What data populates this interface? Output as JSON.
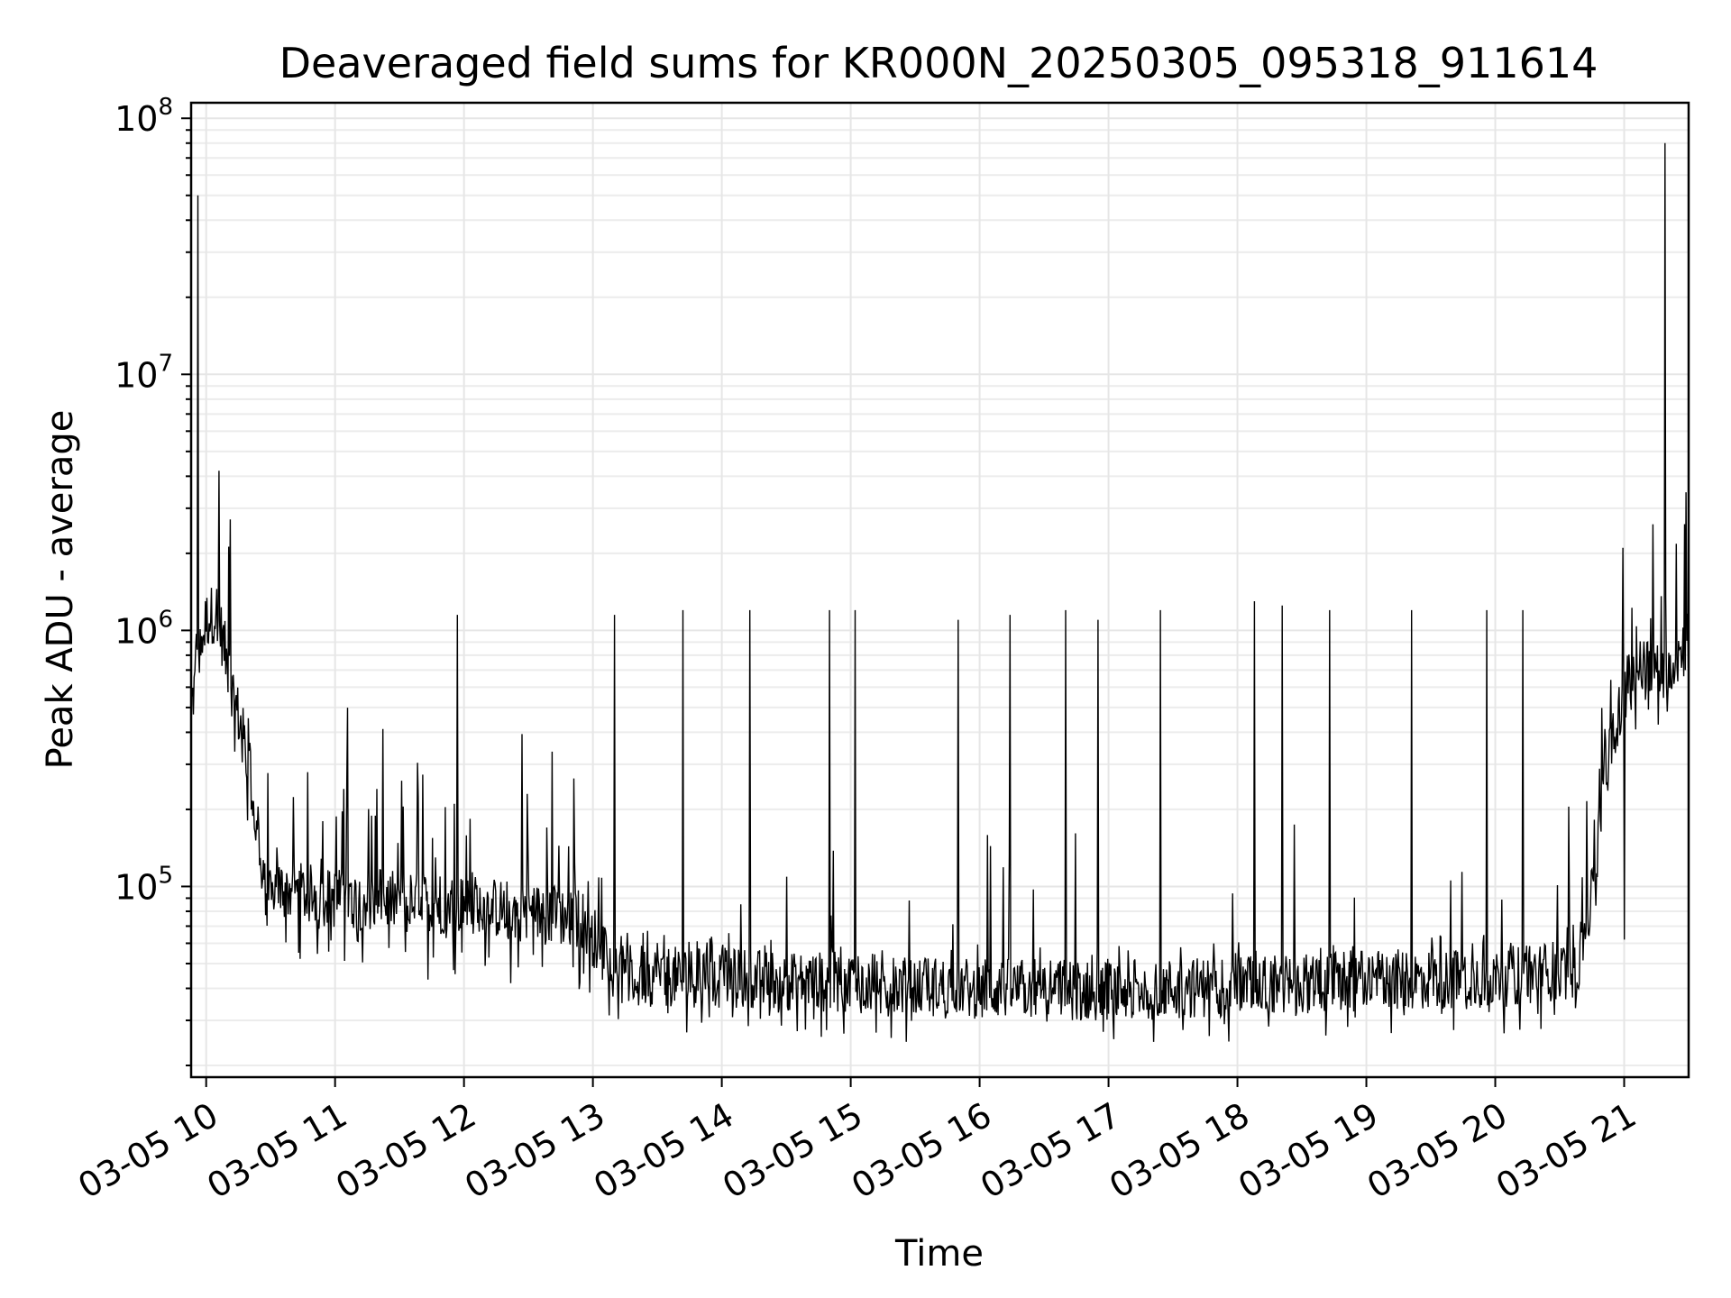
{
  "chart_data": {
    "type": "line",
    "title": "Deaveraged field sums for KR000N_20250305_095318_911614",
    "xlabel": "Time",
    "ylabel": "Peak ADU - average",
    "yscale": "log",
    "ylim": [
      18000,
      115000000
    ],
    "xlim": [
      "2025-03-05 09:53",
      "2025-03-05 21:30"
    ],
    "grid": true,
    "legend": "none",
    "line_color": "#000000",
    "x_ticks": [
      {
        "t": "2025-03-05 10:00",
        "label": "03-05 10"
      },
      {
        "t": "2025-03-05 11:00",
        "label": "03-05 11"
      },
      {
        "t": "2025-03-05 12:00",
        "label": "03-05 12"
      },
      {
        "t": "2025-03-05 13:00",
        "label": "03-05 13"
      },
      {
        "t": "2025-03-05 14:00",
        "label": "03-05 14"
      },
      {
        "t": "2025-03-05 15:00",
        "label": "03-05 15"
      },
      {
        "t": "2025-03-05 16:00",
        "label": "03-05 16"
      },
      {
        "t": "2025-03-05 17:00",
        "label": "03-05 17"
      },
      {
        "t": "2025-03-05 18:00",
        "label": "03-05 18"
      },
      {
        "t": "2025-03-05 19:00",
        "label": "03-05 19"
      },
      {
        "t": "2025-03-05 20:00",
        "label": "03-05 20"
      },
      {
        "t": "2025-03-05 21:00",
        "label": "03-05 21"
      }
    ],
    "y_ticks": [
      {
        "value": 100000,
        "base": "10",
        "exp": "5"
      },
      {
        "value": 1000000,
        "base": "10",
        "exp": "6"
      },
      {
        "value": 10000000,
        "base": "10",
        "exp": "7"
      },
      {
        "value": 100000000,
        "base": "10",
        "exp": "8"
      }
    ],
    "baseline": [
      {
        "t": "2025-03-05 09:53",
        "value": 500000
      },
      {
        "t": "2025-03-05 10:00",
        "value": 1100000
      },
      {
        "t": "2025-03-05 10:05",
        "value": 1200000
      },
      {
        "t": "2025-03-05 10:12",
        "value": 600000
      },
      {
        "t": "2025-03-05 10:20",
        "value": 300000
      },
      {
        "t": "2025-03-05 10:26",
        "value": 100000
      },
      {
        "t": "2025-03-05 11:00",
        "value": 90000
      },
      {
        "t": "2025-03-05 12:00",
        "value": 85000
      },
      {
        "t": "2025-03-05 12:55",
        "value": 75000
      },
      {
        "t": "2025-03-05 13:05",
        "value": 55000
      },
      {
        "t": "2025-03-05 13:12",
        "value": 45000
      },
      {
        "t": "2025-03-05 14:00",
        "value": 44000
      },
      {
        "t": "2025-03-05 15:00",
        "value": 42000
      },
      {
        "t": "2025-03-05 16:00",
        "value": 40000
      },
      {
        "t": "2025-03-05 17:00",
        "value": 39000
      },
      {
        "t": "2025-03-05 18:00",
        "value": 41000
      },
      {
        "t": "2025-03-05 19:00",
        "value": 43000
      },
      {
        "t": "2025-03-05 20:00",
        "value": 44000
      },
      {
        "t": "2025-03-05 20:38",
        "value": 48000
      },
      {
        "t": "2025-03-05 20:45",
        "value": 90000
      },
      {
        "t": "2025-03-05 20:52",
        "value": 300000
      },
      {
        "t": "2025-03-05 21:00",
        "value": 600000
      },
      {
        "t": "2025-03-05 21:10",
        "value": 750000
      },
      {
        "t": "2025-03-05 21:18",
        "value": 700000
      },
      {
        "t": "2025-03-05 21:30",
        "value": 900000
      }
    ],
    "noise_regions": [
      {
        "from": "2025-03-05 09:53",
        "to": "2025-03-05 10:26",
        "low": 0.5,
        "high": 1.6
      },
      {
        "from": "2025-03-05 10:26",
        "to": "2025-03-05 13:05",
        "low": 0.5,
        "high": 3.0
      },
      {
        "from": "2025-03-05 13:05",
        "to": "2025-03-05 20:45",
        "low": 0.6,
        "high": 1.5
      },
      {
        "from": "2025-03-05 20:45",
        "to": "2025-03-05 21:30",
        "low": 0.6,
        "high": 2.0
      }
    ],
    "spikes": [
      {
        "t": "2025-03-05 09:56",
        "value": 50000000
      },
      {
        "t": "2025-03-05 10:06",
        "value": 4200000
      },
      {
        "t": "2025-03-05 11:57",
        "value": 1150000
      },
      {
        "t": "2025-03-05 13:10",
        "value": 1150000
      },
      {
        "t": "2025-03-05 13:42",
        "value": 1200000
      },
      {
        "t": "2025-03-05 14:13",
        "value": 1200000
      },
      {
        "t": "2025-03-05 14:50",
        "value": 1200000
      },
      {
        "t": "2025-03-05 15:02",
        "value": 1200000
      },
      {
        "t": "2025-03-05 15:50",
        "value": 1100000
      },
      {
        "t": "2025-03-05 16:14",
        "value": 1150000
      },
      {
        "t": "2025-03-05 16:40",
        "value": 1200000
      },
      {
        "t": "2025-03-05 16:55",
        "value": 1100000
      },
      {
        "t": "2025-03-05 17:24",
        "value": 1200000
      },
      {
        "t": "2025-03-05 18:08",
        "value": 1300000
      },
      {
        "t": "2025-03-05 18:21",
        "value": 1250000
      },
      {
        "t": "2025-03-05 18:43",
        "value": 1200000
      },
      {
        "t": "2025-03-05 19:21",
        "value": 1200000
      },
      {
        "t": "2025-03-05 19:56",
        "value": 1200000
      },
      {
        "t": "2025-03-05 20:13",
        "value": 1200000
      },
      {
        "t": "2025-03-05 21:00",
        "value": 2400000
      },
      {
        "t": "2025-03-05 21:00",
        "value": 62000
      },
      {
        "t": "2025-03-05 21:19",
        "value": 80000000
      },
      {
        "t": "2025-03-05 21:28",
        "value": 2600000
      }
    ]
  }
}
